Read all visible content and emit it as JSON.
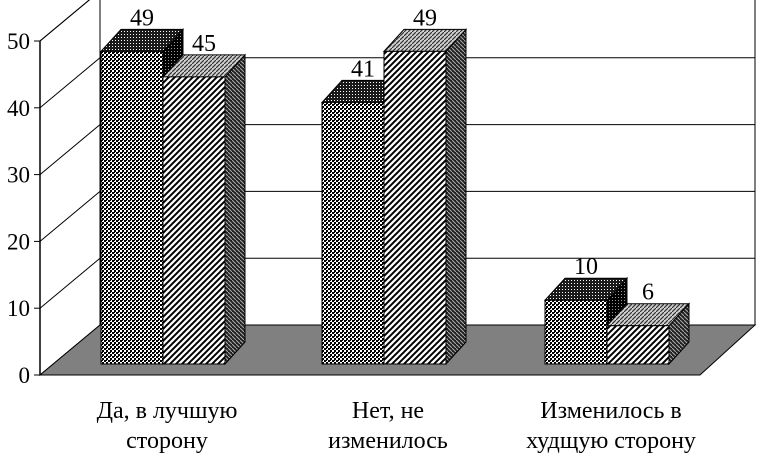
{
  "chart_data": {
    "type": "bar",
    "categories": [
      [
        "Да, в лучшую",
        "сторону"
      ],
      [
        "Нет, не",
        "изменилось"
      ],
      [
        "Изменилось в",
        "худщую сторону"
      ]
    ],
    "series": [
      {
        "values": [
          49,
          41,
          10
        ],
        "pattern": "dots"
      },
      {
        "values": [
          45,
          49,
          6
        ],
        "pattern": "diagonal"
      }
    ],
    "yticks": [
      "0",
      "10",
      "20",
      "30",
      "40",
      "50"
    ],
    "data_labels": [
      [
        "49",
        "41",
        "10"
      ],
      [
        "45",
        "49",
        "6"
      ]
    ],
    "ylim": [
      0,
      50
    ],
    "grid": true,
    "style": "3d-column",
    "colors": {
      "floor": "#808080",
      "grid": "#000000",
      "background": "#ffffff"
    }
  }
}
